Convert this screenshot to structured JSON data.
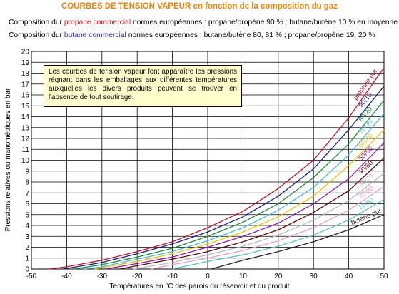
{
  "header": {
    "title": "COURBES DE TENSION VAPEUR en fonction de la composition du gaz",
    "line1_prefix": "Composition dur ",
    "line1_highlight": "propane commercial",
    "line1_suffix": " normes européennes : propane/propène 90 % ; butane/butène 10 % en moyenne",
    "line2_prefix": "Composition dur ",
    "line2_highlight": "butane commercial",
    "line2_suffix": " normes européennes : butane/butène 80, 81 % ; propane/propène 19, 20 %"
  },
  "annotation": "Les courbes de tension vapeur font apparaître les pressions régnant dans les emballages aux différentes températures auxquelles les divers produits peuvent se trouver en l'absence de tout soutirage.",
  "colors": {
    "title": "#e8820a",
    "propane_highlight": "#d02020",
    "butane_highlight": "#2d2fb0"
  },
  "chart_data": {
    "type": "line",
    "title": "",
    "xlabel": "Températures en °C des parois du réservoir et du produit",
    "ylabel": "Pressions relatives ou manométriques en bar",
    "xlim": [
      -50,
      50
    ],
    "ylim": [
      0,
      20
    ],
    "xticks": [
      -50,
      -40,
      -30,
      -20,
      -10,
      0,
      10,
      20,
      30,
      40,
      50
    ],
    "yticks": [
      0,
      1,
      2,
      3,
      4,
      5,
      6,
      7,
      8,
      9,
      10,
      11,
      12,
      13,
      14,
      15,
      16,
      17,
      18,
      19,
      20
    ],
    "grid": true,
    "legend": "inline labels at right end of curves",
    "series": [
      {
        "name": "propane pur",
        "color": "#c0142a",
        "x": [
          -45,
          -40,
          -30,
          -20,
          -10,
          0,
          10,
          20,
          30,
          40,
          50
        ],
        "y": [
          0,
          0.2,
          0.8,
          1.6,
          2.5,
          3.8,
          5.3,
          7.4,
          10.0,
          13.9,
          18.5
        ]
      },
      {
        "name": "90/10",
        "color": "#1a1e80",
        "x": [
          -41,
          -30,
          -20,
          -10,
          0,
          10,
          20,
          30,
          40,
          50
        ],
        "y": [
          0,
          0.6,
          1.4,
          2.3,
          3.4,
          4.8,
          6.7,
          9.2,
          12.8,
          16.8
        ]
      },
      {
        "name": "80/20",
        "color": "#1f8a3a",
        "x": [
          -38,
          -30,
          -20,
          -10,
          0,
          10,
          20,
          30,
          40,
          50
        ],
        "y": [
          0,
          0.4,
          1.1,
          1.9,
          3.0,
          4.3,
          6.0,
          8.4,
          11.5,
          15.5
        ]
      },
      {
        "name": "70/30",
        "color": "#4fb8d8",
        "x": [
          -35,
          -30,
          -20,
          -10,
          0,
          10,
          20,
          30,
          40,
          50
        ],
        "y": [
          0,
          0.2,
          0.9,
          1.6,
          2.6,
          3.8,
          5.4,
          7.5,
          10.5,
          14.3
        ]
      },
      {
        "name": "60/40",
        "color": "#eac414",
        "x": [
          -32,
          -20,
          -10,
          0,
          10,
          20,
          30,
          40,
          50
        ],
        "y": [
          0,
          0.7,
          1.4,
          2.3,
          3.4,
          4.8,
          6.7,
          9.5,
          12.8
        ]
      },
      {
        "name": "50/50",
        "color": "#8c1a9a",
        "x": [
          -29,
          -20,
          -10,
          0,
          10,
          20,
          30,
          40,
          50
        ],
        "y": [
          0,
          0.5,
          1.1,
          2.0,
          3.0,
          4.2,
          6.0,
          8.3,
          11.6
        ]
      },
      {
        "name": "40/60",
        "color": "#5a0a0a",
        "x": [
          -25,
          -20,
          -10,
          0,
          10,
          20,
          30,
          40,
          50
        ],
        "y": [
          0,
          0.3,
          0.9,
          1.6,
          2.5,
          3.6,
          5.2,
          7.2,
          10.2
        ]
      },
      {
        "name": "30/70",
        "color": "#b9b9b9",
        "x": [
          -21,
          -10,
          0,
          10,
          20,
          30,
          40,
          50
        ],
        "y": [
          0,
          0.6,
          1.3,
          2.1,
          3.1,
          4.5,
          6.3,
          8.8
        ]
      },
      {
        "name": "20/80",
        "color": "#e2a0c8",
        "x": [
          -16,
          -10,
          0,
          10,
          20,
          30,
          40,
          50
        ],
        "y": [
          0,
          0.4,
          1.0,
          1.7,
          2.6,
          3.8,
          5.4,
          7.6
        ]
      },
      {
        "name": "10/90",
        "color": "#5fc0c8",
        "x": [
          -10,
          0,
          10,
          20,
          30,
          40,
          50
        ],
        "y": [
          0,
          0.7,
          1.3,
          2.1,
          3.1,
          4.5,
          6.4
        ]
      },
      {
        "name": "butane pur",
        "color": "#222222",
        "x": [
          1,
          10,
          20,
          30,
          40,
          50
        ],
        "y": [
          0,
          0.8,
          1.6,
          2.5,
          3.6,
          5.0
        ]
      }
    ]
  }
}
